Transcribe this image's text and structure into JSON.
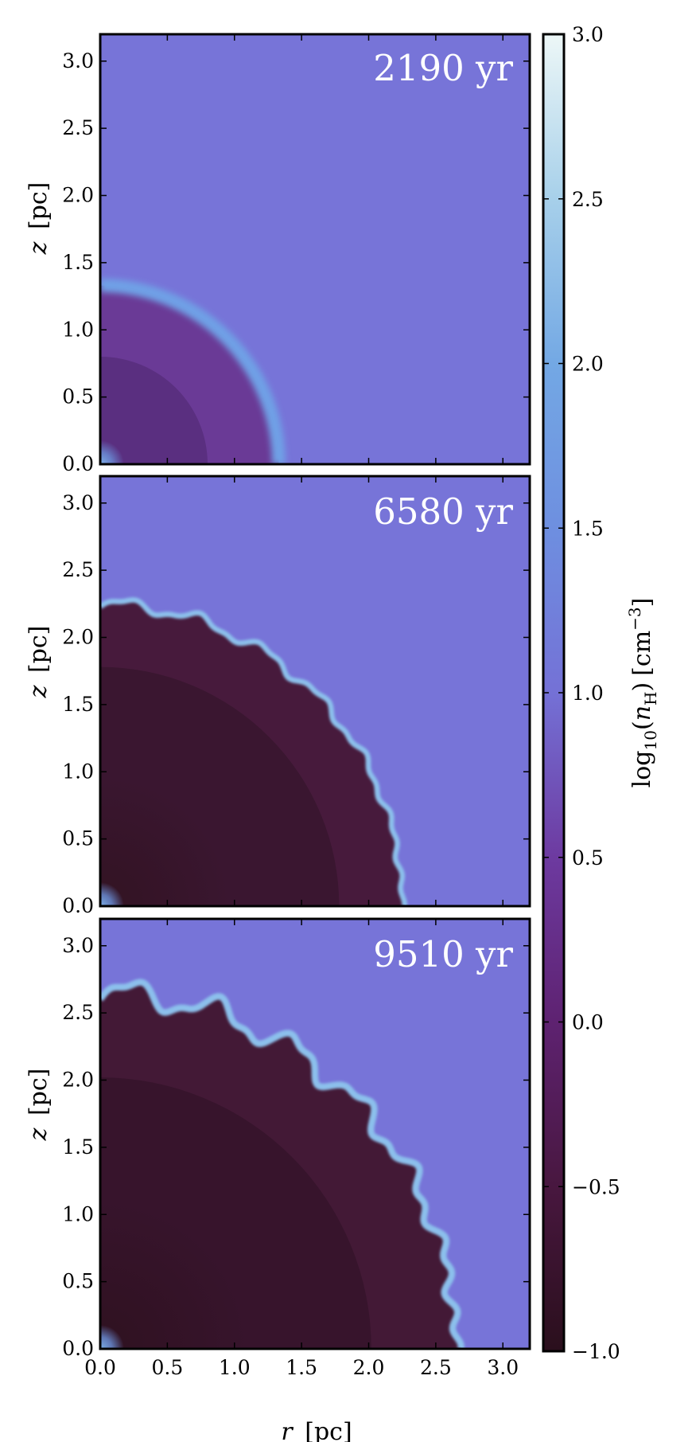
{
  "chart_data": {
    "type": "heatmap",
    "description_panels": 3,
    "xlabel_var": "r",
    "xlabel_unit": "[pc]",
    "ylabel_var": "z",
    "ylabel_unit": "[pc]",
    "xlim": [
      0.0,
      3.2
    ],
    "ylim": [
      0.0,
      3.2
    ],
    "x_ticks": [
      "0.0",
      "0.5",
      "1.0",
      "1.5",
      "2.0",
      "2.5",
      "3.0"
    ],
    "y_ticks": [
      "0.0",
      "0.5",
      "1.0",
      "1.5",
      "2.0",
      "2.5",
      "3.0"
    ],
    "panels": [
      {
        "time_label": "2190 yr",
        "inner_radius": 0.8,
        "shell_radius": 1.33,
        "shell_width": 0.1,
        "perturbation": 0.0,
        "colors": {
          "core": "#5a2f80",
          "inner": "#5a2f80",
          "outer": "#6a3a96",
          "shell": "#6fa0e6"
        }
      },
      {
        "time_label": "6580 yr",
        "inner_radius": 1.78,
        "shell_radius": 2.25,
        "shell_width": 0.04,
        "perturbation": 0.04,
        "colors": {
          "core": "#321322",
          "inner": "#3a1630",
          "outer": "#471a3c",
          "shell": "#8cc0ec"
        }
      },
      {
        "time_label": "9510 yr",
        "inner_radius": 2.02,
        "shell_radius": 2.65,
        "shell_width": 0.05,
        "perturbation": 0.09,
        "colors": {
          "core": "#2f1120",
          "inner": "#37142c",
          "outer": "#431936",
          "shell": "#8cc0ec"
        }
      }
    ],
    "ambient_color": "#7774d8",
    "colorbar": {
      "label_prefix": "log",
      "label_sub": "10",
      "label_var": "n",
      "label_var_sub": "H",
      "label_unit": "[cm",
      "label_unit_sup": "−3",
      "label_close": "]",
      "range": [
        -1.0,
        3.0
      ],
      "ticks": [
        "3.0",
        "2.5",
        "2.0",
        "1.5",
        "1.0",
        "0.5",
        "0.0",
        "−0.5",
        "−1.0"
      ],
      "stops": [
        {
          "value": -1.0,
          "color": "#2a0f1c"
        },
        {
          "value": -0.5,
          "color": "#48173f"
        },
        {
          "value": 0.0,
          "color": "#5e2271"
        },
        {
          "value": 0.5,
          "color": "#6d3aa0"
        },
        {
          "value": 1.0,
          "color": "#7471d6"
        },
        {
          "value": 1.5,
          "color": "#6e8fe0"
        },
        {
          "value": 2.0,
          "color": "#73a8e4"
        },
        {
          "value": 2.5,
          "color": "#a7d0ea"
        },
        {
          "value": 3.0,
          "color": "#edf7f7"
        }
      ]
    }
  }
}
